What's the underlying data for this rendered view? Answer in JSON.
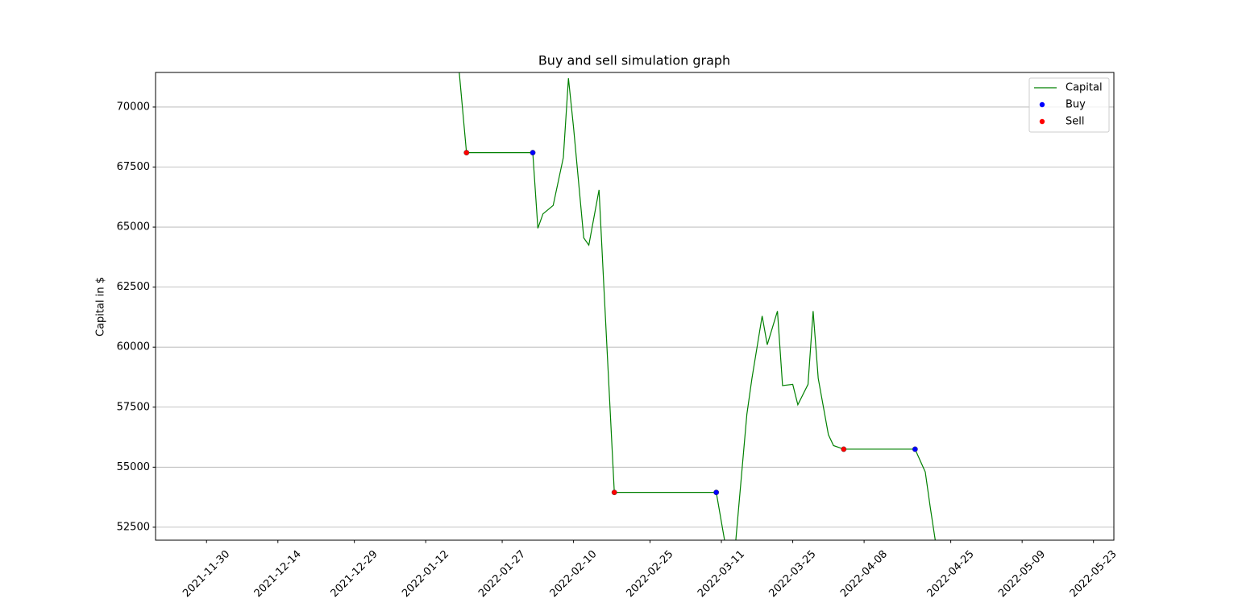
{
  "chart_data": {
    "type": "line",
    "title": "Buy and sell simulation graph",
    "y_label": "Capital in $",
    "xlim": [
      "2021-11-20",
      "2022-05-27"
    ],
    "xticks": [
      "2021-11-30",
      "2021-12-14",
      "2021-12-29",
      "2022-01-12",
      "2022-01-27",
      "2022-02-10",
      "2022-02-25",
      "2022-03-11",
      "2022-03-25",
      "2022-04-08",
      "2022-04-25",
      "2022-05-09",
      "2022-05-23"
    ],
    "ylim": [
      51960,
      71440
    ],
    "yticks": [
      52500,
      55000,
      57500,
      60000,
      62500,
      65000,
      67500,
      70000
    ],
    "grid": "y",
    "legend": "upper right",
    "series": [
      {
        "name": "Capital",
        "kind": "line",
        "color": "#008000",
        "x": [
          "2022-01-18",
          "2022-01-20",
          "2022-02-02",
          "2022-02-03",
          "2022-02-04",
          "2022-02-06",
          "2022-02-08",
          "2022-02-09",
          "2022-02-10",
          "2022-02-12",
          "2022-02-13",
          "2022-02-15",
          "2022-02-16",
          "2022-02-18",
          "2022-03-10",
          "2022-03-12",
          "2022-03-13",
          "2022-03-16",
          "2022-03-17",
          "2022-03-19",
          "2022-03-20",
          "2022-03-22",
          "2022-03-23",
          "2022-03-25",
          "2022-03-26",
          "2022-03-28",
          "2022-03-29",
          "2022-03-30",
          "2022-04-01",
          "2022-04-02",
          "2022-04-04",
          "2022-04-18",
          "2022-04-20",
          "2022-04-21",
          "2022-04-23"
        ],
        "values": [
          72800,
          68100,
          68100,
          64950,
          65550,
          65900,
          67900,
          71200,
          69150,
          64550,
          64250,
          66550,
          62300,
          53950,
          53950,
          51500,
          49950,
          57200,
          58700,
          61300,
          60100,
          61500,
          58400,
          58450,
          57600,
          58450,
          61500,
          58700,
          56350,
          55900,
          55750,
          55750,
          54800,
          53300,
          50500
        ]
      },
      {
        "name": "Buy",
        "kind": "scatter",
        "color": "#0000ff",
        "x": [
          "2022-02-02",
          "2022-03-10",
          "2022-04-18"
        ],
        "values": [
          68100,
          53950,
          55750
        ]
      },
      {
        "name": "Sell",
        "kind": "scatter",
        "color": "#ff0000",
        "x": [
          "2022-01-20",
          "2022-02-18",
          "2022-04-04"
        ],
        "values": [
          68100,
          53950,
          55750
        ]
      }
    ]
  }
}
